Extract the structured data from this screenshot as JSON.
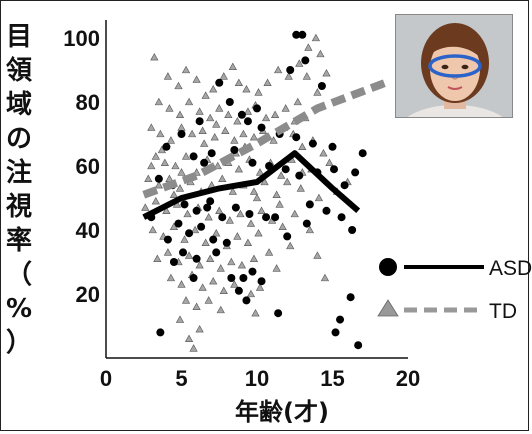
{
  "chart_data": {
    "type": "scatter",
    "title": "",
    "ylabel": "目領域の注視率（%）",
    "xlabel": "年齢(才)",
    "xlim": [
      0,
      20
    ],
    "ylim": [
      0,
      100
    ],
    "xticks": [
      0,
      5,
      10,
      15,
      20
    ],
    "yticks": [
      20,
      40,
      60,
      80,
      100
    ],
    "grid": false,
    "legend_position": "right",
    "series": [
      {
        "name": "ASD",
        "marker": "circle",
        "color": "#000000",
        "trend": [
          [
            2.5,
            44
          ],
          [
            5,
            50
          ],
          [
            7.5,
            53
          ],
          [
            10,
            55
          ],
          [
            12.5,
            64
          ],
          [
            15,
            53
          ],
          [
            16.7,
            46
          ]
        ],
        "points": [
          [
            12.6,
            101
          ],
          [
            13.0,
            101
          ],
          [
            12.2,
            90
          ],
          [
            13.2,
            93
          ],
          [
            14.3,
            85
          ],
          [
            10.0,
            78
          ],
          [
            9.0,
            76
          ],
          [
            10.3,
            72
          ],
          [
            11.5,
            70
          ],
          [
            12.6,
            69
          ],
          [
            13.7,
            67
          ],
          [
            7.5,
            86
          ],
          [
            8.2,
            80
          ],
          [
            9.4,
            74
          ],
          [
            6.2,
            74
          ],
          [
            5.0,
            70
          ],
          [
            4.0,
            66
          ],
          [
            5.8,
            63
          ],
          [
            6.5,
            61
          ],
          [
            7.0,
            64
          ],
          [
            8.5,
            65
          ],
          [
            9.7,
            61
          ],
          [
            10.8,
            60
          ],
          [
            11.9,
            59
          ],
          [
            12.8,
            57
          ],
          [
            14.0,
            58
          ],
          [
            15.1,
            59
          ],
          [
            15.8,
            54
          ],
          [
            16.5,
            58
          ],
          [
            17.0,
            64
          ],
          [
            15.0,
            66
          ],
          [
            3.5,
            56
          ],
          [
            4.4,
            54
          ],
          [
            5.2,
            48
          ],
          [
            6.0,
            46
          ],
          [
            6.9,
            49
          ],
          [
            7.7,
            44
          ],
          [
            8.6,
            47
          ],
          [
            9.5,
            45
          ],
          [
            10.6,
            44
          ],
          [
            11.2,
            44
          ],
          [
            13.5,
            48
          ],
          [
            14.6,
            46
          ],
          [
            15.6,
            44
          ],
          [
            16.3,
            40
          ],
          [
            4.8,
            42
          ],
          [
            5.5,
            39
          ],
          [
            6.3,
            41
          ],
          [
            7.1,
            37
          ],
          [
            8.0,
            36
          ],
          [
            3.0,
            44
          ],
          [
            4.1,
            37
          ],
          [
            5.1,
            33
          ],
          [
            6.0,
            31
          ],
          [
            7.3,
            33
          ],
          [
            8.3,
            25
          ],
          [
            9.1,
            25
          ],
          [
            9.7,
            27
          ],
          [
            10.3,
            24
          ],
          [
            8.8,
            21
          ],
          [
            9.3,
            18
          ],
          [
            11.4,
            14
          ],
          [
            12.0,
            38
          ],
          [
            13.3,
            42
          ],
          [
            15.5,
            12
          ],
          [
            15.2,
            8
          ],
          [
            16.7,
            4
          ],
          [
            16.2,
            19
          ],
          [
            3.6,
            8
          ],
          [
            4.5,
            30
          ],
          [
            5.8,
            25
          ],
          [
            6.7,
            47
          ]
        ]
      },
      {
        "name": "TD",
        "marker": "triangle",
        "color": "#999999",
        "trend": [
          [
            2.5,
            51
          ],
          [
            6,
            57
          ],
          [
            10,
            67
          ],
          [
            14,
            78
          ],
          [
            18.5,
            86
          ]
        ],
        "points": [
          [
            3.2,
            94
          ],
          [
            4.1,
            88
          ],
          [
            4.8,
            85
          ],
          [
            5.3,
            90
          ],
          [
            6.0,
            87
          ],
          [
            6.6,
            82
          ],
          [
            7.1,
            84
          ],
          [
            7.8,
            88
          ],
          [
            8.4,
            91
          ],
          [
            8.8,
            86
          ],
          [
            9.3,
            84
          ],
          [
            10.1,
            83
          ],
          [
            10.7,
            86
          ],
          [
            11.4,
            90
          ],
          [
            12.1,
            88
          ],
          [
            12.8,
            92
          ],
          [
            13.4,
            97
          ],
          [
            13.9,
            100
          ],
          [
            14.2,
            95
          ],
          [
            14.6,
            89
          ],
          [
            3.5,
            80
          ],
          [
            4.2,
            78
          ],
          [
            4.9,
            76
          ],
          [
            5.5,
            80
          ],
          [
            6.2,
            77
          ],
          [
            6.9,
            75
          ],
          [
            7.5,
            78
          ],
          [
            8.1,
            76
          ],
          [
            8.7,
            74
          ],
          [
            9.4,
            77
          ],
          [
            9.9,
            79
          ],
          [
            10.6,
            75
          ],
          [
            11.2,
            76
          ],
          [
            11.9,
            78
          ],
          [
            12.5,
            74
          ],
          [
            13.2,
            75
          ],
          [
            3.0,
            72
          ],
          [
            3.6,
            70
          ],
          [
            4.3,
            68
          ],
          [
            5.0,
            72
          ],
          [
            5.7,
            70
          ],
          [
            6.4,
            71
          ],
          [
            7.2,
            69
          ],
          [
            7.9,
            71
          ],
          [
            8.5,
            68
          ],
          [
            9.1,
            70
          ],
          [
            9.8,
            69
          ],
          [
            10.4,
            71
          ],
          [
            11.1,
            68
          ],
          [
            11.8,
            72
          ],
          [
            12.4,
            70
          ],
          [
            13.0,
            66
          ],
          [
            13.7,
            68
          ],
          [
            14.4,
            64
          ],
          [
            3.3,
            63
          ],
          [
            3.9,
            61
          ],
          [
            4.6,
            60
          ],
          [
            5.3,
            63
          ],
          [
            6.0,
            58
          ],
          [
            6.7,
            62
          ],
          [
            7.4,
            60
          ],
          [
            8.1,
            61
          ],
          [
            8.8,
            59
          ],
          [
            9.5,
            62
          ],
          [
            10.2,
            58
          ],
          [
            10.9,
            61
          ],
          [
            11.6,
            57
          ],
          [
            12.3,
            62
          ],
          [
            13.6,
            59
          ],
          [
            14.8,
            61
          ],
          [
            2.8,
            56
          ],
          [
            3.5,
            54
          ],
          [
            4.2,
            56
          ],
          [
            4.9,
            53
          ],
          [
            5.6,
            55
          ],
          [
            6.3,
            52
          ],
          [
            7.0,
            54
          ],
          [
            7.7,
            56
          ],
          [
            8.4,
            52
          ],
          [
            9.1,
            54
          ],
          [
            9.8,
            52
          ],
          [
            10.5,
            55
          ],
          [
            11.3,
            51
          ],
          [
            12.0,
            55
          ],
          [
            12.9,
            53
          ],
          [
            14.1,
            50
          ],
          [
            15.3,
            52
          ],
          [
            16.0,
            55
          ],
          [
            2.6,
            47
          ],
          [
            3.3,
            49
          ],
          [
            4.0,
            46
          ],
          [
            4.7,
            48
          ],
          [
            5.4,
            45
          ],
          [
            6.1,
            47
          ],
          [
            6.8,
            44
          ],
          [
            7.5,
            46
          ],
          [
            8.2,
            43
          ],
          [
            8.9,
            45
          ],
          [
            9.6,
            42
          ],
          [
            10.3,
            46
          ],
          [
            11.0,
            43
          ],
          [
            11.7,
            41
          ],
          [
            12.5,
            45
          ],
          [
            13.5,
            40
          ],
          [
            3.1,
            40
          ],
          [
            3.8,
            38
          ],
          [
            4.5,
            41
          ],
          [
            5.2,
            37
          ],
          [
            5.9,
            40
          ],
          [
            6.6,
            36
          ],
          [
            7.3,
            39
          ],
          [
            8.0,
            35
          ],
          [
            8.7,
            38
          ],
          [
            9.4,
            36
          ],
          [
            10.1,
            39
          ],
          [
            10.8,
            33
          ],
          [
            12.2,
            35
          ],
          [
            3.4,
            31
          ],
          [
            4.1,
            33
          ],
          [
            4.8,
            30
          ],
          [
            5.5,
            32
          ],
          [
            6.2,
            29
          ],
          [
            6.9,
            31
          ],
          [
            7.6,
            28
          ],
          [
            8.3,
            30
          ],
          [
            9.0,
            29
          ],
          [
            9.8,
            31
          ],
          [
            11.3,
            28
          ],
          [
            14.0,
            32
          ],
          [
            4.3,
            25
          ],
          [
            5.0,
            23
          ],
          [
            5.7,
            26
          ],
          [
            6.4,
            22
          ],
          [
            7.1,
            24
          ],
          [
            7.8,
            21
          ],
          [
            8.5,
            23
          ],
          [
            9.6,
            20
          ],
          [
            10.2,
            22
          ],
          [
            14.5,
            25
          ],
          [
            5.3,
            18
          ],
          [
            6.0,
            16
          ],
          [
            6.8,
            18
          ],
          [
            7.6,
            15
          ],
          [
            9.9,
            14
          ],
          [
            4.9,
            12
          ],
          [
            6.2,
            9
          ],
          [
            5.5,
            6
          ],
          [
            5.8,
            3
          ],
          [
            13.0,
            58
          ],
          [
            3.7,
            65
          ],
          [
            5.0,
            58
          ],
          [
            8.6,
            64
          ],
          [
            10.0,
            50
          ],
          [
            11.5,
            48
          ],
          [
            13.3,
            88
          ],
          [
            14.0,
            83
          ],
          [
            6.5,
            67
          ],
          [
            7.3,
            73
          ],
          [
            9.2,
            66
          ],
          [
            4.5,
            51
          ],
          [
            3.0,
            60
          ],
          [
            12.7,
            80
          ]
        ]
      }
    ]
  },
  "photo": {
    "icon": "face-with-eye-region-ellipse",
    "ellipse_color": "#2b63c9"
  }
}
